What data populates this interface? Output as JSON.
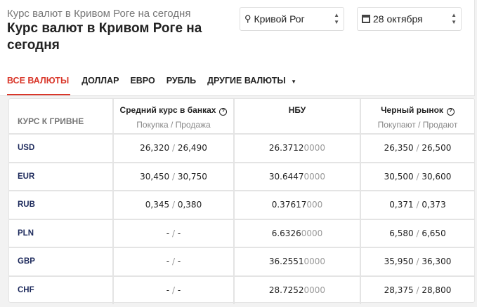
{
  "header": {
    "subtitle": "Курс валют в Кривом Роге на сегодня",
    "title": "Курс валют в Кривом Роге на сегодня",
    "city": "Кривой Рог",
    "date": "28 октября"
  },
  "tabs": [
    "ВСЕ ВАЛЮТЫ",
    "ДОЛЛАР",
    "ЕВРО",
    "РУБЛЬ",
    "ДРУГИЕ ВАЛЮТЫ"
  ],
  "accent": "#d9372a",
  "table": {
    "headers": {
      "currency": "КУРС К ГРИВНЕ",
      "banks": "Средний курс в банках",
      "banks_sub": "Покупка / Продажа",
      "nbu": "НБУ",
      "black": "Черный рынок",
      "black_sub": "Покупают / Продают"
    },
    "rows": [
      {
        "code": "USD",
        "bank_buy": "26,320",
        "bank_sell": "26,490",
        "nbu": "26.3712",
        "nbu_tail": "0000",
        "bm_buy": "26,350",
        "bm_sell": "26,500"
      },
      {
        "code": "EUR",
        "bank_buy": "30,450",
        "bank_sell": "30,750",
        "nbu": "30.6447",
        "nbu_tail": "0000",
        "bm_buy": "30,500",
        "bm_sell": "30,600"
      },
      {
        "code": "RUB",
        "bank_buy": "0,345",
        "bank_sell": "0,380",
        "nbu": "0.37617",
        "nbu_tail": "000",
        "bm_buy": "0,371",
        "bm_sell": "0,373"
      },
      {
        "code": "PLN",
        "bank_buy": "-",
        "bank_sell": "-",
        "nbu": "6.6326",
        "nbu_tail": "0000",
        "bm_buy": "6,580",
        "bm_sell": "6,650"
      },
      {
        "code": "GBP",
        "bank_buy": "-",
        "bank_sell": "-",
        "nbu": "36.2551",
        "nbu_tail": "0000",
        "bm_buy": "35,950",
        "bm_sell": "36,300"
      },
      {
        "code": "CHF",
        "bank_buy": "-",
        "bank_sell": "-",
        "nbu": "28.7252",
        "nbu_tail": "0000",
        "bm_buy": "28,375",
        "bm_sell": "28,800"
      }
    ]
  }
}
